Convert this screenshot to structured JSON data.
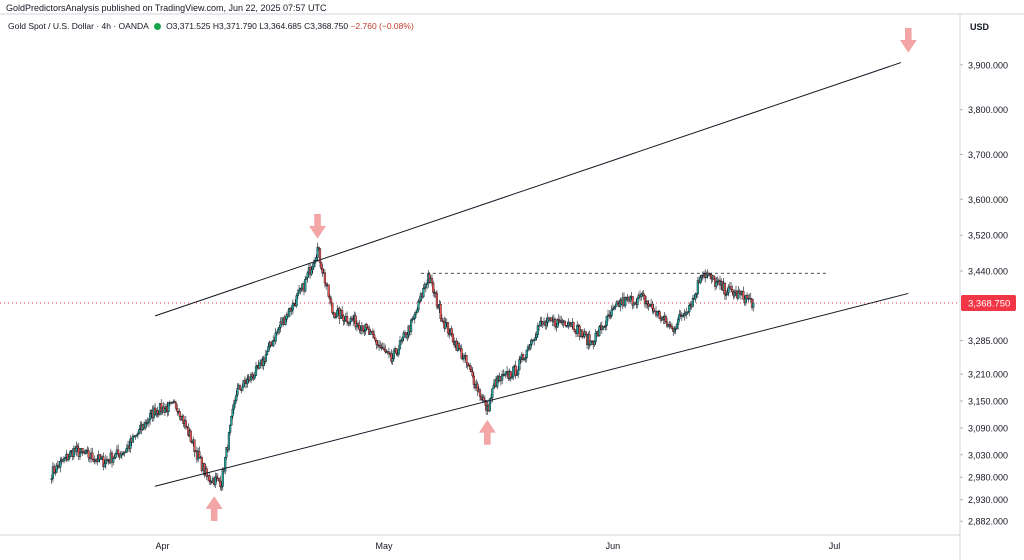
{
  "header": {
    "published": "GoldPredictorsAnalysis published on TradingView.com, Jun 22, 2025 07:57 UTC"
  },
  "symbol": {
    "name": "Gold Spot / U.S. Dollar · 4h · OANDA",
    "open": "O3,371.525",
    "high": "H3,371.790",
    "low": "L3,364.685",
    "close": "C3,368.750",
    "change": "−2.760 (−0.08%)"
  },
  "price_axis": {
    "currency": "USD",
    "current_price_label": "3,368.750"
  },
  "colors": {
    "up": "#26a69a",
    "down": "#ef5350",
    "candle_outline": "#131722",
    "arrow": "#f4a6a6",
    "current_price": "#f23645",
    "trendline": "#131722"
  },
  "chart_data": {
    "type": "candlestick",
    "timeframe": "4h",
    "x_axis": [
      "Apr",
      "May",
      "Jun",
      "Jul"
    ],
    "y_ticks": [
      {
        "value": 3900,
        "label": "3,900.000"
      },
      {
        "value": 3800,
        "label": "3,800.000"
      },
      {
        "value": 3700,
        "label": "3,700.000"
      },
      {
        "value": 3600,
        "label": "3,600.000"
      },
      {
        "value": 3520,
        "label": "3,520.000"
      },
      {
        "value": 3440,
        "label": "3,440.000"
      },
      {
        "value": 3368.75,
        "label": "3,368.750",
        "current": true
      },
      {
        "value": 3285,
        "label": "3,285.000"
      },
      {
        "value": 3210,
        "label": "3,210.000"
      },
      {
        "value": 3150,
        "label": "3,150.000"
      },
      {
        "value": 3090,
        "label": "3,090.000"
      },
      {
        "value": 3030,
        "label": "3,030.000"
      },
      {
        "value": 2980,
        "label": "2,980.000"
      },
      {
        "value": 2930,
        "label": "2,930.000"
      },
      {
        "value": 2882,
        "label": "2,882.000"
      }
    ],
    "price_path": [
      {
        "date": "2025-03-17",
        "price": 2990
      },
      {
        "date": "2025-03-20",
        "price": 3040
      },
      {
        "date": "2025-03-24",
        "price": 3015
      },
      {
        "date": "2025-03-27",
        "price": 3040
      },
      {
        "date": "2025-03-31",
        "price": 3130
      },
      {
        "date": "2025-04-03",
        "price": 3140
      },
      {
        "date": "2025-04-07",
        "price": 2980
      },
      {
        "date": "2025-04-09",
        "price": 2970
      },
      {
        "date": "2025-04-11",
        "price": 3170
      },
      {
        "date": "2025-04-14",
        "price": 3220
      },
      {
        "date": "2025-04-17",
        "price": 3320
      },
      {
        "date": "2025-04-20",
        "price": 3400
      },
      {
        "date": "2025-04-22",
        "price": 3490
      },
      {
        "date": "2025-04-24",
        "price": 3350
      },
      {
        "date": "2025-04-28",
        "price": 3320
      },
      {
        "date": "2025-05-02",
        "price": 3240
      },
      {
        "date": "2025-05-05",
        "price": 3330
      },
      {
        "date": "2025-05-07",
        "price": 3430
      },
      {
        "date": "2025-05-09",
        "price": 3330
      },
      {
        "date": "2025-05-12",
        "price": 3240
      },
      {
        "date": "2025-05-15",
        "price": 3130
      },
      {
        "date": "2025-05-16",
        "price": 3190
      },
      {
        "date": "2025-05-19",
        "price": 3220
      },
      {
        "date": "2025-05-22",
        "price": 3320
      },
      {
        "date": "2025-05-26",
        "price": 3330
      },
      {
        "date": "2025-05-29",
        "price": 3280
      },
      {
        "date": "2025-06-02",
        "price": 3370
      },
      {
        "date": "2025-06-05",
        "price": 3380
      },
      {
        "date": "2025-06-09",
        "price": 3310
      },
      {
        "date": "2025-06-12",
        "price": 3380
      },
      {
        "date": "2025-06-13",
        "price": 3440
      },
      {
        "date": "2025-06-16",
        "price": 3400
      },
      {
        "date": "2025-06-19",
        "price": 3380
      },
      {
        "date": "2025-06-20",
        "price": 3368.75
      }
    ],
    "trendlines": [
      {
        "name": "upper-channel",
        "from": {
          "date": "2025-03-31",
          "price": 3340
        },
        "to": {
          "date": "2025-07-10",
          "price": 3905
        },
        "style": "solid"
      },
      {
        "name": "lower-channel",
        "from": {
          "date": "2025-03-31",
          "price": 2960
        },
        "to": {
          "date": "2025-07-11",
          "price": 3390
        },
        "style": "solid"
      },
      {
        "name": "resistance",
        "from": {
          "date": "2025-05-06",
          "price": 3435
        },
        "to": {
          "date": "2025-06-30",
          "price": 3435
        },
        "style": "dashed"
      }
    ],
    "arrows": [
      {
        "date": "2025-07-11",
        "price": 3955,
        "direction": "down"
      },
      {
        "date": "2025-04-22",
        "price": 3540,
        "direction": "down"
      },
      {
        "date": "2025-04-08",
        "price": 2910,
        "direction": "up"
      },
      {
        "date": "2025-05-15",
        "price": 3080,
        "direction": "up"
      }
    ],
    "current_price": 3368.75
  }
}
